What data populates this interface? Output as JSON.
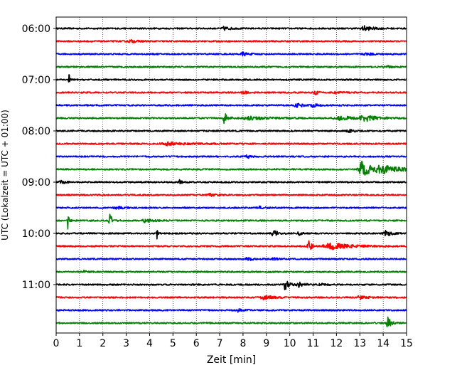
{
  "chart_data": {
    "type": "line",
    "title": "",
    "xlabel": "Zeit  [min]",
    "ylabel": "UTC (Lokalzeit = UTC + 01:00)",
    "xlim": [
      0,
      15
    ],
    "x_ticks": [
      "0",
      "1",
      "2",
      "3",
      "4",
      "5",
      "6",
      "7",
      "8",
      "9",
      "10",
      "11",
      "12",
      "13",
      "14",
      "15"
    ],
    "y_ticks": [
      "06:00",
      "07:00",
      "08:00",
      "09:00",
      "10:00",
      "11:00"
    ],
    "y_tick_trace_index": [
      0,
      4,
      8,
      12,
      16,
      20
    ],
    "grid": "vertical-dotted",
    "trace_interval_min": 15,
    "colors": [
      "#000000",
      "#ff0000",
      "#0000ff",
      "#008000"
    ],
    "traces": [
      {
        "start": "06:00",
        "color": "#000000",
        "bursts": [
          [
            7.2,
            0.06,
            0.22
          ],
          [
            13.2,
            0.08,
            0.35
          ]
        ]
      },
      {
        "start": "06:15",
        "color": "#ff0000",
        "bursts": [
          [
            3.2,
            0.04,
            0.3
          ]
        ]
      },
      {
        "start": "06:30",
        "color": "#0000ff",
        "bursts": [
          [
            8.0,
            0.06,
            0.2
          ],
          [
            13.3,
            0.03,
            0.4
          ]
        ]
      },
      {
        "start": "06:45",
        "color": "#008000",
        "bursts": [
          [
            14.2,
            0.03,
            0.2
          ]
        ]
      },
      {
        "start": "07:00",
        "color": "#000000",
        "bursts": [
          [
            0.55,
            0.2,
            0.05
          ]
        ]
      },
      {
        "start": "07:15",
        "color": "#ff0000",
        "bursts": [
          [
            8.0,
            0.06,
            0.15
          ],
          [
            11.1,
            0.06,
            0.15
          ],
          [
            12.0,
            0.04,
            0.3
          ]
        ]
      },
      {
        "start": "07:30",
        "color": "#0000ff",
        "bursts": [
          [
            10.3,
            0.07,
            0.25
          ],
          [
            11.0,
            0.05,
            0.2
          ]
        ]
      },
      {
        "start": "07:45",
        "color": "#008000",
        "bursts": [
          [
            7.2,
            0.2,
            0.15
          ],
          [
            8.3,
            0.05,
            0.8
          ],
          [
            12.2,
            0.06,
            0.8
          ],
          [
            13.2,
            0.1,
            0.4
          ]
        ]
      },
      {
        "start": "08:00",
        "color": "#000000",
        "bursts": [
          [
            12.5,
            0.06,
            0.2
          ]
        ]
      },
      {
        "start": "08:15",
        "color": "#ff0000",
        "bursts": [
          [
            4.8,
            0.05,
            0.8
          ]
        ]
      },
      {
        "start": "08:30",
        "color": "#0000ff",
        "bursts": [
          [
            8.2,
            0.05,
            0.2
          ]
        ]
      },
      {
        "start": "08:45",
        "color": "#008000",
        "bursts": [
          [
            13.1,
            0.35,
            0.3
          ],
          [
            14.0,
            0.12,
            0.8
          ]
        ]
      },
      {
        "start": "09:00",
        "color": "#000000",
        "bursts": [
          [
            0.2,
            0.08,
            0.15
          ],
          [
            5.3,
            0.08,
            0.1
          ]
        ]
      },
      {
        "start": "09:15",
        "color": "#ff0000",
        "bursts": [
          [
            6.6,
            0.04,
            0.2
          ]
        ]
      },
      {
        "start": "09:30",
        "color": "#0000ff",
        "bursts": [
          [
            2.6,
            0.04,
            0.3
          ],
          [
            8.7,
            0.04,
            0.2
          ]
        ]
      },
      {
        "start": "09:45",
        "color": "#008000",
        "bursts": [
          [
            0.5,
            0.3,
            0.04
          ],
          [
            2.3,
            0.2,
            0.12
          ],
          [
            3.8,
            0.06,
            0.3
          ]
        ]
      },
      {
        "start": "10:00",
        "color": "#000000",
        "bursts": [
          [
            4.3,
            0.35,
            0.03
          ],
          [
            9.3,
            0.15,
            0.15
          ],
          [
            10.4,
            0.06,
            0.15
          ],
          [
            14.1,
            0.12,
            0.2
          ]
        ]
      },
      {
        "start": "10:15",
        "color": "#ff0000",
        "bursts": [
          [
            10.8,
            0.3,
            0.1
          ],
          [
            11.8,
            0.1,
            0.8
          ]
        ]
      },
      {
        "start": "10:30",
        "color": "#0000ff",
        "bursts": [
          [
            8.2,
            0.05,
            0.2
          ],
          [
            9.3,
            0.05,
            0.15
          ]
        ]
      },
      {
        "start": "10:45",
        "color": "#008000",
        "bursts": [
          [
            1.2,
            0.04,
            0.1
          ]
        ]
      },
      {
        "start": "11:00",
        "color": "#000000",
        "bursts": [
          [
            9.8,
            0.18,
            0.15
          ],
          [
            10.4,
            0.08,
            0.2
          ],
          [
            11.3,
            0.04,
            0.2
          ]
        ]
      },
      {
        "start": "11:15",
        "color": "#ff0000",
        "bursts": [
          [
            8.9,
            0.07,
            0.4
          ],
          [
            13.0,
            0.06,
            0.3
          ]
        ]
      },
      {
        "start": "11:30",
        "color": "#0000ff",
        "bursts": [
          [
            7.8,
            0.05,
            0.2
          ]
        ]
      },
      {
        "start": "11:45",
        "color": "#008000",
        "bursts": [
          [
            14.2,
            0.2,
            0.12
          ]
        ]
      }
    ]
  }
}
